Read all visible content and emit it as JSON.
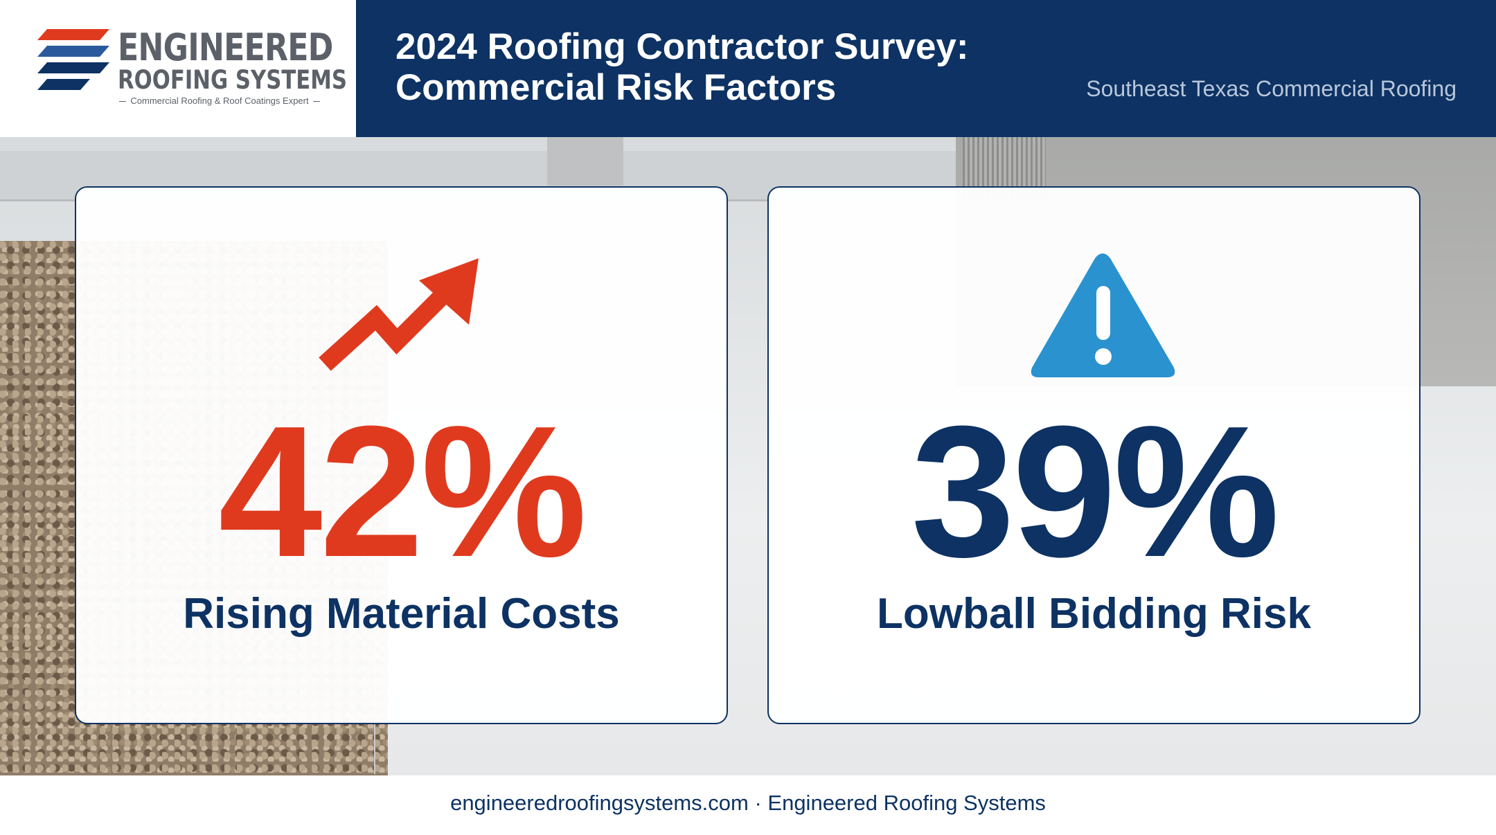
{
  "brand": {
    "name_line1": "ENGINEERED",
    "name_line2": "ROOFING SYSTEMS",
    "tagline": "Commercial Roofing & Roof Coatings Expert",
    "colors": {
      "navy": "#0d3263",
      "red": "#e03a1e",
      "gray": "#5c6068",
      "blue_icon": "#2a92cf"
    }
  },
  "header": {
    "title_line1": "2024 Roofing Contractor Survey:",
    "title_line2": "Commercial Risk Factors",
    "subtitle": "Southeast Texas Commercial Roofing"
  },
  "stats": [
    {
      "icon": "trending-up-arrow-icon",
      "value": "42%",
      "label": "Rising Material Costs",
      "color": "#e03a1e"
    },
    {
      "icon": "warning-triangle-icon",
      "value": "39%",
      "label": "Lowball Bidding Risk",
      "color": "#0d3263"
    }
  ],
  "footer": {
    "text": "engineeredroofingsystems.com · Engineered Roofing Systems"
  }
}
